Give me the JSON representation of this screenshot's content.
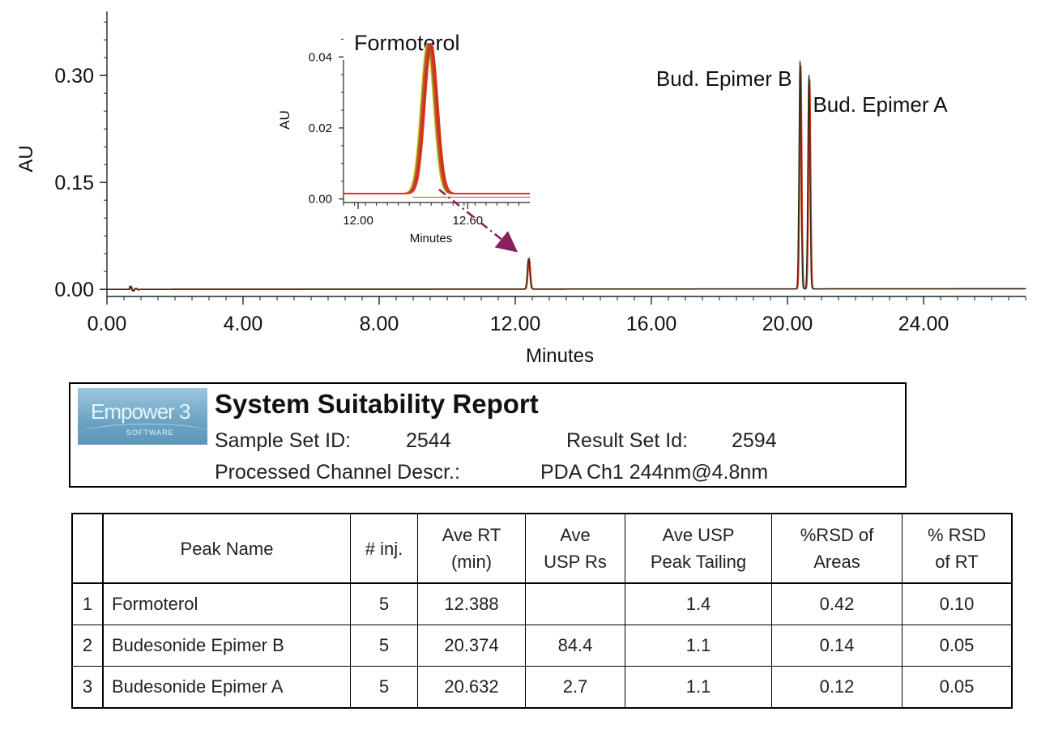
{
  "chart_data": [
    {
      "type": "line",
      "xlabel": "Minutes",
      "ylabel": "AU",
      "xlim": [
        0,
        27
      ],
      "ylim": [
        -0.01,
        0.39
      ],
      "x_ticks": [
        "0.00",
        "4.00",
        "8.00",
        "12.00",
        "16.00",
        "20.00",
        "24.00"
      ],
      "y_ticks": [
        "0.00",
        "0.15",
        "0.30"
      ],
      "peaks": [
        {
          "rt": 12.39,
          "height": 0.043,
          "color": "#d93a1e"
        },
        {
          "rt": 20.37,
          "height": 0.32,
          "color": "#4a3a10"
        },
        {
          "rt": 20.63,
          "height": 0.3,
          "color": "#4a3a10"
        }
      ],
      "annotations": [
        {
          "label": "Bud. Epimer B",
          "x": 20.37
        },
        {
          "label": "Bud. Epimer A",
          "x": 20.63
        }
      ],
      "colors": {
        "trace": "#2a2a1a",
        "overlay": "#d93a1e",
        "arrow": "#8a1f5e"
      }
    },
    {
      "type": "line",
      "title": "Formoterol",
      "xlabel": "Minutes",
      "ylabel": "AU",
      "xlim": [
        11.92,
        12.94
      ],
      "ylim": [
        -0.001,
        0.046
      ],
      "x_ticks": [
        "12.00",
        "12.60"
      ],
      "y_ticks": [
        "0.00",
        "0.02",
        "0.04"
      ],
      "peak": {
        "rt": 12.39,
        "height": 0.042
      }
    }
  ],
  "report": {
    "logo_text": "Empower 3",
    "logo_sub": "SOFTWARE",
    "title": "System Suitability Report",
    "sample_set_label": "Sample Set ID:",
    "sample_set_value": "2544",
    "result_set_label": "Result Set Id:",
    "result_set_value": "2594",
    "channel_label": "Processed Channel Descr.:",
    "channel_value": "PDA Ch1 244nm@4.8nm"
  },
  "table": {
    "headers": [
      {
        "line1": "",
        "line2": ""
      },
      {
        "line1": "Peak Name",
        "line2": ""
      },
      {
        "line1": "# inj.",
        "line2": ""
      },
      {
        "line1": "Ave RT",
        "line2": "(min)"
      },
      {
        "line1": "Ave",
        "line2": "USP Rs"
      },
      {
        "line1": "Ave USP",
        "line2": "Peak Tailing"
      },
      {
        "line1": "%RSD of",
        "line2": "Areas"
      },
      {
        "line1": "% RSD",
        "line2": "of RT"
      }
    ],
    "rows": [
      {
        "idx": "1",
        "name": "Formoterol",
        "inj": "5",
        "rt": "12.388",
        "rs": "",
        "tailing": "1.4",
        "rsd_area": "0.42",
        "rsd_rt": "0.10"
      },
      {
        "idx": "2",
        "name": "Budesonide Epimer B",
        "inj": "5",
        "rt": "20.374",
        "rs": "84.4",
        "tailing": "1.1",
        "rsd_area": "0.14",
        "rsd_rt": "0.05"
      },
      {
        "idx": "3",
        "name": "Budesonide Epimer A",
        "inj": "5",
        "rt": "20.632",
        "rs": "2.7",
        "tailing": "1.1",
        "rsd_area": "0.12",
        "rsd_rt": "0.05"
      }
    ]
  }
}
